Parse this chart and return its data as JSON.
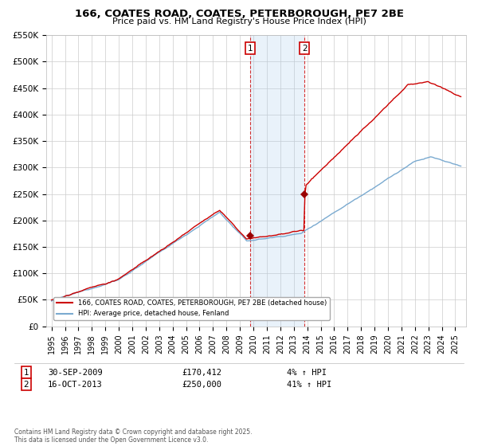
{
  "title": "166, COATES ROAD, COATES, PETERBOROUGH, PE7 2BE",
  "subtitle": "Price paid vs. HM Land Registry's House Price Index (HPI)",
  "ylim": [
    0,
    550000
  ],
  "xlim_start": 1994.6,
  "xlim_end": 2025.8,
  "purchase1_date": 2009.75,
  "purchase1_price": 170412,
  "purchase2_date": 2013.79,
  "purchase2_price": 250000,
  "red_line_color": "#cc0000",
  "blue_line_color": "#7aaad0",
  "shade_color": "#ddeeff",
  "marker_color": "#990000",
  "legend1": "166, COATES ROAD, COATES, PETERBOROUGH, PE7 2BE (detached house)",
  "legend2": "HPI: Average price, detached house, Fenland",
  "footer": "Contains HM Land Registry data © Crown copyright and database right 2025.\nThis data is licensed under the Open Government Licence v3.0.",
  "background_color": "#ffffff",
  "grid_color": "#cccccc"
}
